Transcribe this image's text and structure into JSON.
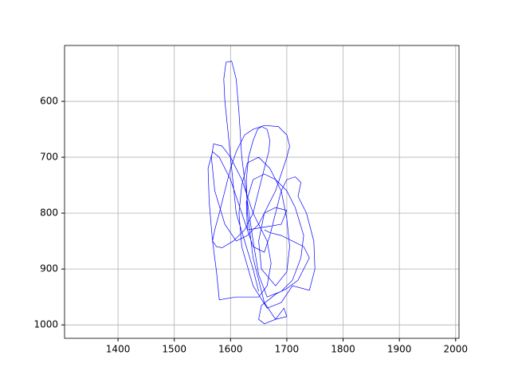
{
  "chart_data": {
    "type": "line",
    "x": [
      1650,
      1640,
      1625,
      1610,
      1605,
      1600,
      1595,
      1590,
      1588,
      1592,
      1602,
      1610,
      1615,
      1620,
      1630,
      1640,
      1650,
      1665,
      1690,
      1710,
      1725,
      1730,
      1715,
      1700,
      1680,
      1660,
      1640,
      1628,
      1630,
      1660,
      1690,
      1700,
      1680,
      1660,
      1650,
      1655,
      1680,
      1700,
      1705,
      1700,
      1690,
      1670,
      1650,
      1630,
      1620,
      1615,
      1620,
      1640,
      1665,
      1690,
      1710,
      1740,
      1750,
      1748,
      1735,
      1720,
      1725,
      1715,
      1700,
      1690,
      1680,
      1670,
      1660,
      1640,
      1620,
      1600,
      1580,
      1568,
      1560,
      1562,
      1568,
      1575,
      1580,
      1610,
      1650,
      1665,
      1672,
      1665,
      1650,
      1640,
      1630,
      1620,
      1600,
      1585,
      1570,
      1566,
      1572,
      1590,
      1610,
      1630,
      1650,
      1665,
      1680,
      1690,
      1700,
      1705,
      1700,
      1685,
      1660,
      1640,
      1625,
      1610,
      1600,
      1590,
      1580,
      1572,
      1568,
      1575,
      1585,
      1605,
      1625,
      1640,
      1650,
      1660,
      1668,
      1670,
      1665,
      1655,
      1648,
      1640,
      1632,
      1628,
      1630,
      1640,
      1660,
      1680,
      1700,
      1695,
      1680,
      1660,
      1650,
      1655,
      1668,
      1680,
      1700,
      1720,
      1740,
      1730,
      1710,
      1690,
      1670,
      1660
    ],
    "y": [
      940,
      900,
      850,
      800,
      750,
      700,
      650,
      600,
      560,
      530,
      528,
      560,
      620,
      700,
      780,
      850,
      910,
      950,
      940,
      920,
      880,
      840,
      790,
      760,
      740,
      730,
      740,
      780,
      830,
      825,
      820,
      795,
      790,
      800,
      850,
      900,
      930,
      905,
      860,
      810,
      760,
      720,
      700,
      710,
      750,
      800,
      860,
      930,
      970,
      960,
      930,
      938,
      900,
      850,
      800,
      770,
      745,
      735,
      740,
      760,
      800,
      840,
      870,
      860,
      800,
      740,
      700,
      690,
      720,
      780,
      850,
      905,
      955,
      950,
      950,
      930,
      890,
      850,
      820,
      800,
      770,
      740,
      700,
      680,
      676,
      700,
      760,
      820,
      850,
      840,
      820,
      790,
      760,
      730,
      700,
      680,
      660,
      645,
      643,
      650,
      660,
      690,
      720,
      760,
      800,
      830,
      850,
      860,
      862,
      850,
      830,
      800,
      760,
      720,
      690,
      670,
      650,
      645,
      650,
      670,
      700,
      740,
      800,
      880,
      960,
      990,
      985,
      970,
      990,
      998,
      990,
      965,
      955,
      945,
      935,
      920,
      880,
      860,
      850,
      840,
      835,
      830
    ],
    "color": "#0000ff",
    "xlim": [
      1305,
      2006
    ],
    "ylim": [
      1024,
      500
    ],
    "xticks": [
      1400,
      1500,
      1600,
      1700,
      1800,
      1900,
      2000
    ],
    "yticks": [
      600,
      700,
      800,
      900,
      1000
    ],
    "grid": true
  }
}
